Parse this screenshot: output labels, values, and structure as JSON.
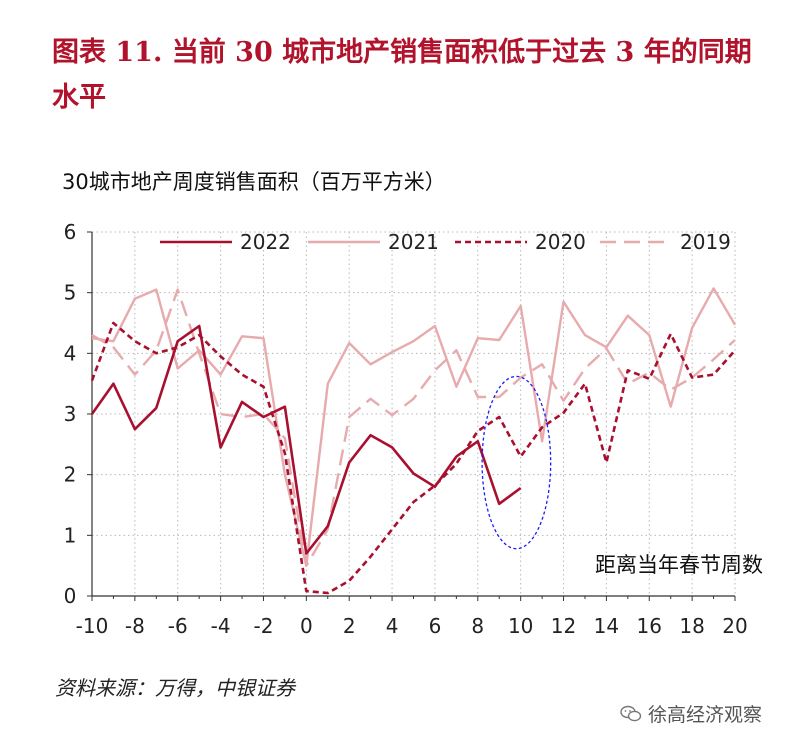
{
  "title": "图表 11. 当前 30 城市地产销售面积低于过去 3 年的同期水平",
  "source": "资料来源：万得，中银证券",
  "watermark": {
    "text": "徐高经济观察",
    "icon": "wechat-icon"
  },
  "chart_data": {
    "type": "line",
    "title": "",
    "ylabel": "30城市地产周度销售面积（百万平方米）",
    "xlabel": "距离当年春节周数",
    "xlim": [
      -10,
      20
    ],
    "ylim": [
      0,
      6
    ],
    "xticks": [
      "-10",
      "-8",
      "-6",
      "-4",
      "-2",
      "0",
      "2",
      "4",
      "6",
      "8",
      "10",
      "12",
      "14",
      "16",
      "18",
      "20"
    ],
    "yticks": [
      "0",
      "1",
      "2",
      "3",
      "4",
      "5",
      "6"
    ],
    "grid": "dotted",
    "legend": "top",
    "series": [
      {
        "name": "2022",
        "color": "#a8102f",
        "dash": "solid",
        "x": [
          -10,
          -9,
          -8,
          -7,
          -6,
          -5,
          -4,
          -3,
          -2,
          -1,
          0,
          1,
          2,
          3,
          4,
          5,
          6,
          7,
          8,
          9,
          10
        ],
        "y": [
          3.0,
          3.5,
          2.75,
          3.1,
          4.2,
          4.45,
          2.45,
          3.2,
          2.95,
          3.12,
          0.7,
          1.15,
          2.2,
          2.65,
          2.45,
          2.02,
          1.8,
          2.3,
          2.55,
          1.52,
          1.78
        ]
      },
      {
        "name": "2021",
        "color": "#e7aaad",
        "dash": "solid",
        "x": [
          -10,
          -9,
          -8,
          -7,
          -6,
          -5,
          -4,
          -3,
          -2,
          -1,
          0,
          1,
          2,
          3,
          4,
          5,
          6,
          7,
          8,
          9,
          10,
          11,
          12,
          13,
          14,
          15,
          16,
          17,
          18,
          19,
          20
        ],
        "y": [
          4.25,
          4.2,
          4.9,
          5.05,
          3.75,
          4.05,
          3.65,
          4.28,
          4.25,
          2.0,
          0.5,
          3.5,
          4.17,
          3.82,
          4.02,
          4.2,
          4.45,
          3.45,
          4.25,
          4.22,
          4.78,
          2.55,
          4.85,
          4.3,
          4.1,
          4.62,
          4.3,
          3.12,
          4.42,
          5.07,
          4.47
        ]
      },
      {
        "name": "2020",
        "color": "#a8102f",
        "dash": "short",
        "x": [
          -10,
          -9,
          -8,
          -7,
          -6,
          -5,
          -4,
          -3,
          -2,
          -1,
          0,
          1,
          2,
          3,
          4,
          5,
          6,
          7,
          8,
          9,
          10,
          11,
          12,
          13,
          14,
          15,
          16,
          17,
          18,
          19,
          20
        ],
        "y": [
          3.55,
          4.5,
          4.2,
          4.0,
          4.1,
          4.3,
          3.95,
          3.65,
          3.45,
          2.35,
          0.08,
          0.05,
          0.25,
          0.65,
          1.1,
          1.55,
          1.82,
          2.18,
          2.72,
          2.95,
          2.3,
          2.78,
          3.02,
          3.5,
          2.2,
          3.72,
          3.58,
          4.32,
          3.6,
          3.65,
          4.05
        ]
      },
      {
        "name": "2019",
        "color": "#e7aaad",
        "dash": "long",
        "x": [
          -10,
          -9,
          -8,
          -7,
          -6,
          -5,
          -4,
          -3,
          -2,
          -1,
          0,
          1,
          2,
          3,
          4,
          5,
          6,
          7,
          8,
          9,
          10,
          11,
          12,
          13,
          14,
          15,
          16,
          17,
          18,
          19,
          20
        ],
        "y": [
          4.3,
          4.1,
          3.65,
          4.05,
          5.05,
          4.0,
          3.0,
          2.95,
          3.0,
          2.6,
          0.5,
          1.1,
          2.95,
          3.25,
          2.98,
          3.25,
          3.72,
          4.05,
          3.28,
          3.28,
          3.6,
          3.82,
          3.22,
          3.75,
          4.08,
          3.5,
          3.68,
          3.4,
          3.6,
          3.9,
          4.22
        ]
      }
    ],
    "annotations": [
      {
        "type": "ellipse",
        "cx": 9.8,
        "cy": 2.2,
        "rx": 1.6,
        "ry": 1.42,
        "color": "#1a1aff",
        "style": "dashed"
      }
    ]
  }
}
